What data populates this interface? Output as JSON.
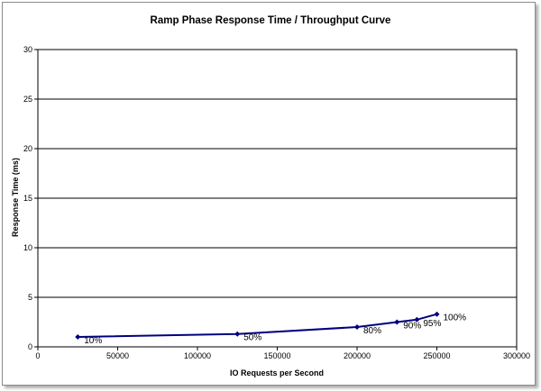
{
  "chart_data": {
    "type": "line",
    "title": "Ramp Phase Response Time / Throughput Curve",
    "xlabel": "IO Requests per Second",
    "ylabel": "Response Time (ms)",
    "xlim": [
      0,
      300000
    ],
    "ylim": [
      0,
      30
    ],
    "x_ticks": [
      "0",
      "50000",
      "100000",
      "150000",
      "200000",
      "250000",
      "300000"
    ],
    "y_ticks": [
      "0",
      "5",
      "10",
      "15",
      "20",
      "25",
      "30"
    ],
    "grid": true,
    "legend": "none",
    "line_color": "#000080",
    "points": [
      {
        "x": 25000,
        "y": 1.0,
        "label": "10%"
      },
      {
        "x": 125000,
        "y": 1.3,
        "label": "50%"
      },
      {
        "x": 200000,
        "y": 2.0,
        "label": "80%"
      },
      {
        "x": 225000,
        "y": 2.5,
        "label": "90%"
      },
      {
        "x": 237500,
        "y": 2.75,
        "label": "95%"
      },
      {
        "x": 250000,
        "y": 3.3,
        "label": "100%"
      }
    ]
  }
}
